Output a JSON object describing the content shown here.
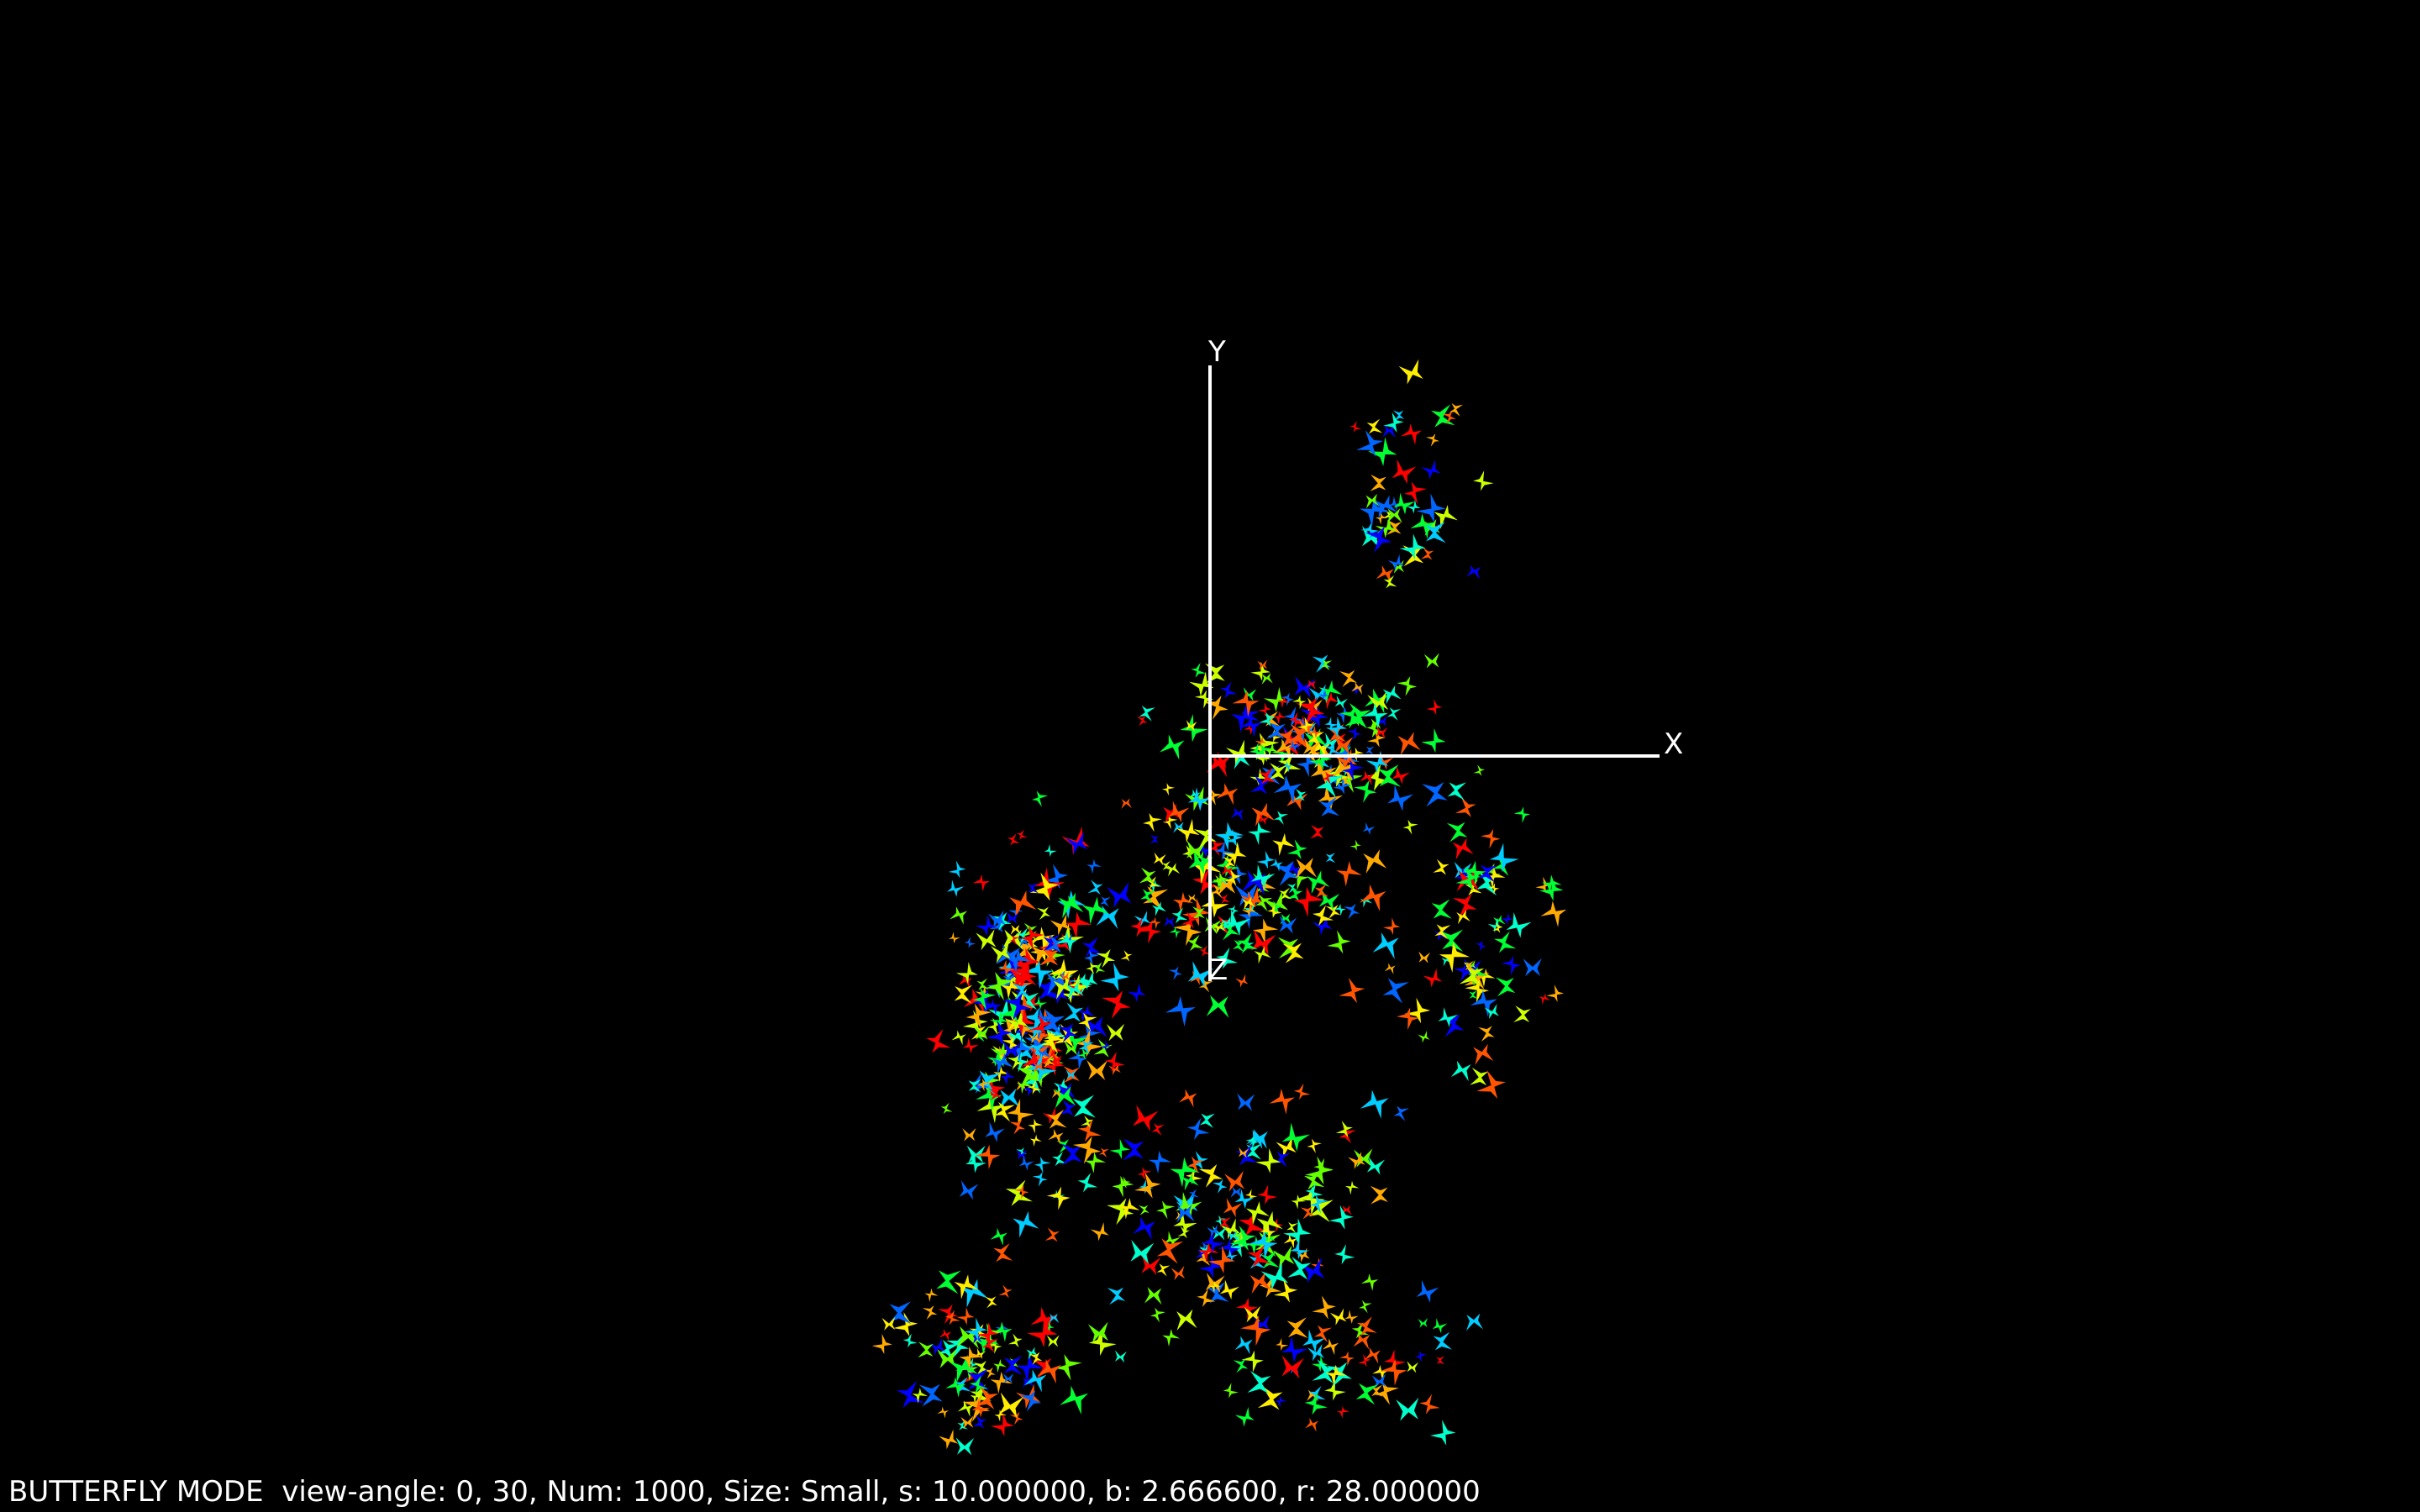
{
  "scene": {
    "background": "#000000",
    "axis_color": "#ffffff",
    "axes": {
      "x_label": "X",
      "y_label": "Y",
      "z_label": "Z"
    },
    "butterfly_palette": [
      "#0000ff",
      "#0066ff",
      "#00ccff",
      "#00ffcc",
      "#00ff33",
      "#66ff00",
      "#ccff00",
      "#ffee00",
      "#ffaa00",
      "#ff5500",
      "#ff0000"
    ]
  },
  "status": {
    "text": "BUTTERFLY MODE  view-angle: 0, 30, Num: 1000, Size: Small, s: 10.000000, b: 2.666600, r: 28.000000",
    "mode": "BUTTERFLY MODE",
    "view_angle": "0, 30",
    "num": 1000,
    "size": "Small",
    "s": "10.000000",
    "b": "2.666600",
    "r": "28.000000"
  }
}
